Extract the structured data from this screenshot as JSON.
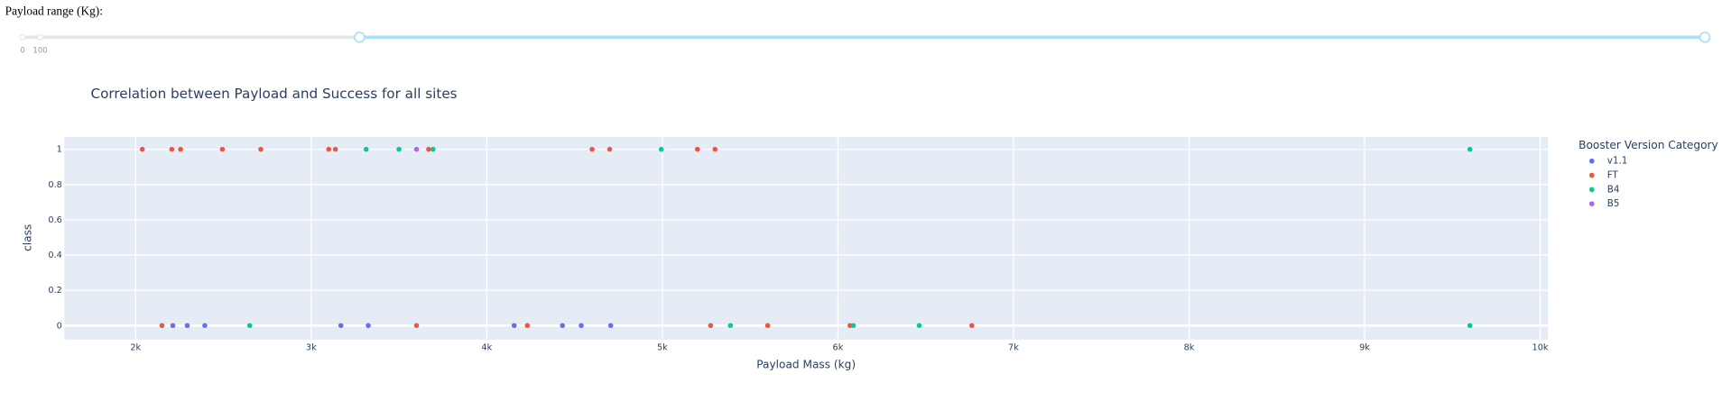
{
  "page_label": "Payload range (Kg):",
  "slider": {
    "marks": [
      "0",
      "100"
    ]
  },
  "chart_data": {
    "type": "scatter",
    "title": "Correlation between Payload and Success for all sites",
    "x_label": "Payload Mass (kg)",
    "y_label": "class",
    "legend_title": "Booster Version Category",
    "legend_position": "right",
    "grid": true,
    "xlim": [
      1594,
      10044
    ],
    "ylim": [
      -0.08,
      1.07
    ],
    "xticks": [
      {
        "value": 2000,
        "label": "2k"
      },
      {
        "value": 3000,
        "label": "3k"
      },
      {
        "value": 4000,
        "label": "4k"
      },
      {
        "value": 5000,
        "label": "5k"
      },
      {
        "value": 6000,
        "label": "6k"
      },
      {
        "value": 7000,
        "label": "7k"
      },
      {
        "value": 8000,
        "label": "8k"
      },
      {
        "value": 9000,
        "label": "9k"
      },
      {
        "value": 10000,
        "label": "10k"
      }
    ],
    "yticks": [
      0,
      0.2,
      0.4,
      0.6,
      0.8,
      1
    ],
    "series": [
      {
        "name": "v1.1",
        "color": "#636efa",
        "x": [
          2212,
          2294,
          2394,
          3169,
          3325,
          4156,
          4431,
          4538,
          4706
        ],
        "y": [
          0,
          0,
          0,
          0,
          0,
          0,
          0,
          0,
          0
        ]
      },
      {
        "name": "FT",
        "color": "#ef553b",
        "x": [
          2038,
          2206,
          2256,
          2494,
          2713,
          3100,
          3138,
          3669,
          4600,
          4700,
          5200,
          5300,
          2150,
          3600,
          4231,
          5275,
          5600,
          6069,
          6763
        ],
        "y": [
          1,
          1,
          1,
          1,
          1,
          1,
          1,
          1,
          1,
          1,
          1,
          1,
          0,
          0,
          0,
          0,
          0,
          0,
          0
        ]
      },
      {
        "name": "B4",
        "color": "#00cc96",
        "x": [
          3313,
          3500,
          3694,
          4994,
          9600,
          2650,
          5388,
          6088,
          6463,
          9600
        ],
        "y": [
          1,
          1,
          1,
          1,
          1,
          0,
          0,
          0,
          0,
          0
        ]
      },
      {
        "name": "B5",
        "color": "#ab63fa",
        "x": [
          3600
        ],
        "y": [
          1
        ]
      }
    ]
  }
}
